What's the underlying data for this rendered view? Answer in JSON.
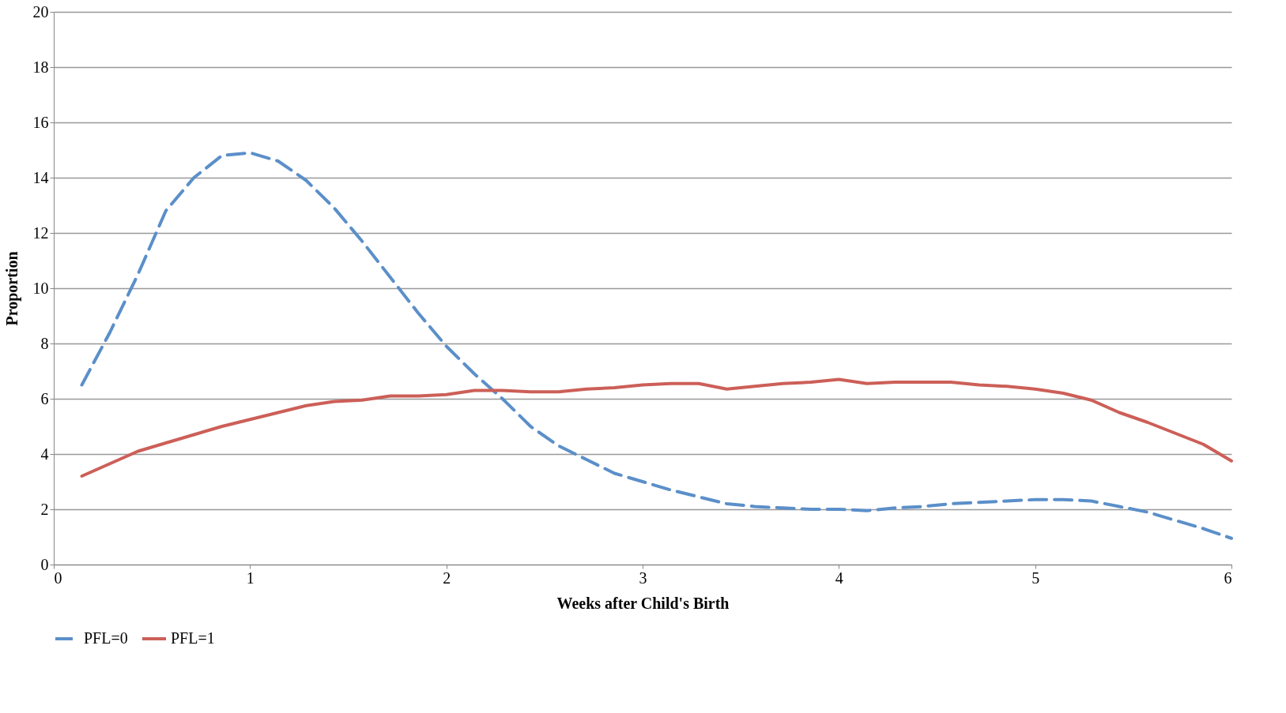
{
  "chart_data": {
    "type": "line",
    "xlabel": "Weeks after Child's Birth",
    "ylabel": "Proportion",
    "x": [
      0.143,
      0.286,
      0.429,
      0.571,
      0.714,
      0.857,
      1,
      1.143,
      1.286,
      1.429,
      1.571,
      1.714,
      1.857,
      2,
      2.143,
      2.286,
      2.429,
      2.571,
      2.714,
      2.857,
      3,
      3.143,
      3.286,
      3.429,
      3.571,
      3.714,
      3.857,
      4,
      4.143,
      4.286,
      4.429,
      4.571,
      4.714,
      4.857,
      5,
      5.143,
      5.286,
      5.429,
      5.571,
      5.714,
      5.857,
      6
    ],
    "series": [
      {
        "name": "PFL=0",
        "color": "#5b8fc9",
        "line_style": "dashed",
        "values": [
          6.5,
          8.4,
          10.5,
          12.8,
          14.0,
          14.8,
          14.9,
          14.6,
          13.9,
          12.9,
          11.7,
          10.4,
          9.1,
          7.9,
          6.9,
          6.0,
          5.0,
          4.3,
          3.8,
          3.3,
          3.0,
          2.7,
          2.45,
          2.2,
          2.1,
          2.05,
          2.0,
          2.0,
          1.95,
          2.05,
          2.1,
          2.2,
          2.25,
          2.3,
          2.35,
          2.35,
          2.3,
          2.1,
          1.9,
          1.6,
          1.3,
          0.95
        ]
      },
      {
        "name": "PFL=1",
        "color": "#cc5f58",
        "line_style": "solid",
        "values": [
          3.2,
          3.65,
          4.1,
          4.4,
          4.7,
          5.0,
          5.25,
          5.5,
          5.75,
          5.9,
          5.95,
          6.1,
          6.1,
          6.15,
          6.3,
          6.3,
          6.25,
          6.25,
          6.35,
          6.4,
          6.5,
          6.55,
          6.55,
          6.35,
          6.45,
          6.55,
          6.6,
          6.7,
          6.55,
          6.6,
          6.6,
          6.6,
          6.5,
          6.45,
          6.35,
          6.2,
          5.95,
          5.5,
          5.15,
          4.75,
          4.35,
          3.75
        ]
      }
    ],
    "xlim": [
      0,
      6
    ],
    "xticks": [
      0,
      1,
      2,
      3,
      4,
      5,
      6
    ],
    "ylim": [
      0,
      20
    ],
    "yticks": [
      0,
      2,
      4,
      6,
      8,
      10,
      12,
      14,
      16,
      18,
      20
    ],
    "grid": "y",
    "legend": "bottom",
    "marker": "none"
  }
}
